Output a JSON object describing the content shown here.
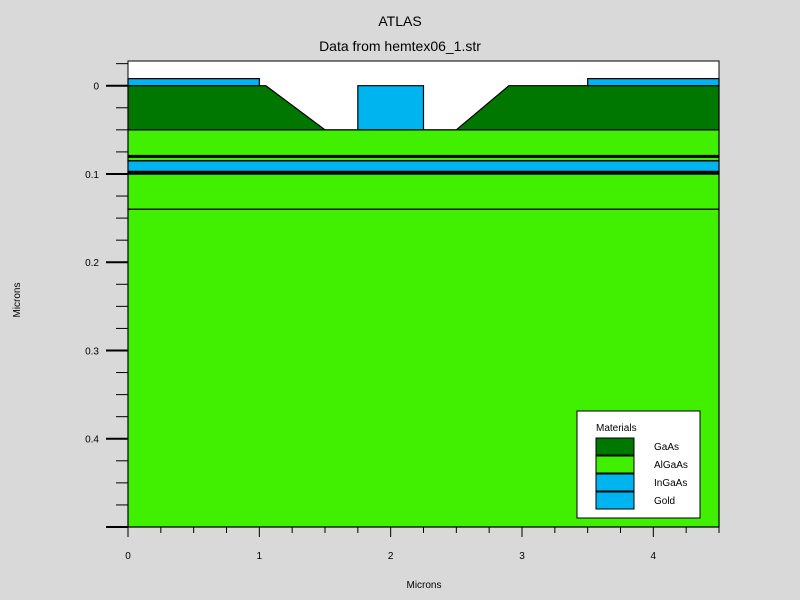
{
  "title": "ATLAS",
  "subtitle": "Data from hemtex06_1.str",
  "x_axis": {
    "label": "Microns",
    "range": [
      0,
      4.5
    ],
    "ticks": [
      "0",
      "1",
      "2",
      "3",
      "4"
    ],
    "tick_values": [
      0,
      1,
      2,
      3,
      4
    ],
    "minor_step": 0.25
  },
  "y_axis": {
    "label": "Microns",
    "range": [
      -0.028,
      0.5
    ],
    "inverted": true,
    "ticks": [
      "0",
      "0.1",
      "0.2",
      "0.3",
      "0.4"
    ],
    "tick_values": [
      0,
      0.1,
      0.2,
      0.3,
      0.4
    ],
    "minor_step": 0.025
  },
  "materials": {
    "GaAs": "#007800",
    "AlGaAs": "#40f000",
    "InGaAs": "#00b4f0",
    "Gold": "#00b4f0"
  },
  "legend": {
    "title": "Materials",
    "placement": "bottom-right",
    "items": [
      {
        "name": "GaAs",
        "color": "#007800"
      },
      {
        "name": "AlGaAs",
        "color": "#40f000"
      },
      {
        "name": "InGaAs",
        "color": "#00b4f0"
      },
      {
        "name": "Gold",
        "color": "#00b4f0"
      }
    ]
  },
  "regions": [
    {
      "name": "substrate-algaas",
      "material": "AlGaAs",
      "points": [
        [
          0,
          0.14
        ],
        [
          4.5,
          0.14
        ],
        [
          4.5,
          0.5
        ],
        [
          0,
          0.5
        ]
      ]
    },
    {
      "name": "algaas-buffer",
      "material": "AlGaAs",
      "points": [
        [
          0,
          0.1
        ],
        [
          4.5,
          0.1
        ],
        [
          4.5,
          0.14
        ],
        [
          0,
          0.14
        ]
      ]
    },
    {
      "name": "algaas-spacer-lower",
      "material": "AlGaAs",
      "points": [
        [
          0,
          0.098
        ],
        [
          4.5,
          0.098
        ],
        [
          4.5,
          0.1
        ],
        [
          0,
          0.1
        ]
      ]
    },
    {
      "name": "ingaas-channel",
      "material": "InGaAs",
      "points": [
        [
          0,
          0.085
        ],
        [
          4.5,
          0.085
        ],
        [
          4.5,
          0.098
        ],
        [
          0,
          0.098
        ]
      ]
    },
    {
      "name": "algaas-spacer-upper",
      "material": "AlGaAs",
      "points": [
        [
          0,
          0.08
        ],
        [
          4.5,
          0.08
        ],
        [
          4.5,
          0.085
        ],
        [
          0,
          0.085
        ]
      ]
    },
    {
      "name": "algaas-barrier",
      "material": "AlGaAs",
      "points": [
        [
          0,
          0.05
        ],
        [
          4.5,
          0.05
        ],
        [
          4.5,
          0.08
        ],
        [
          0,
          0.08
        ]
      ]
    },
    {
      "name": "gaas-cap-left",
      "material": "GaAs",
      "points": [
        [
          0,
          0
        ],
        [
          1.05,
          0
        ],
        [
          1.5,
          0.05
        ],
        [
          0,
          0.05
        ]
      ]
    },
    {
      "name": "gaas-cap-right",
      "material": "GaAs",
      "points": [
        [
          2.9,
          0
        ],
        [
          4.5,
          0
        ],
        [
          4.5,
          0.05
        ],
        [
          2.5,
          0.05
        ]
      ]
    },
    {
      "name": "gold-gate",
      "material": "Gold",
      "points": [
        [
          1.75,
          0
        ],
        [
          2.25,
          0
        ],
        [
          2.25,
          0.05
        ],
        [
          1.75,
          0.05
        ]
      ]
    },
    {
      "name": "gold-source",
      "material": "Gold",
      "points": [
        [
          0,
          -0.008
        ],
        [
          1,
          -0.008
        ],
        [
          1,
          0
        ],
        [
          0,
          0
        ]
      ]
    },
    {
      "name": "gold-drain",
      "material": "Gold",
      "points": [
        [
          3.5,
          -0.008
        ],
        [
          4.5,
          -0.008
        ],
        [
          4.5,
          0
        ],
        [
          3.5,
          0
        ]
      ]
    }
  ],
  "interfaces": [
    {
      "y": 0.05,
      "width": 1
    },
    {
      "y": 0.08,
      "width": 3
    },
    {
      "y": 0.085,
      "width": 1
    },
    {
      "y": 0.098,
      "width": 3
    },
    {
      "y": 0.14,
      "width": 1
    }
  ]
}
